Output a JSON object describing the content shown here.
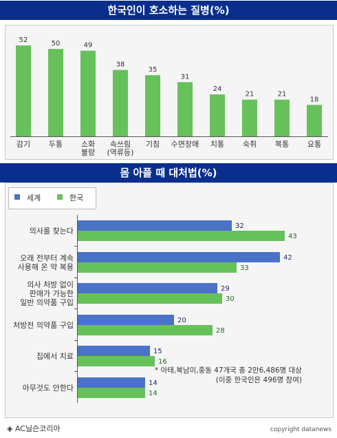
{
  "charts": {
    "top_title": "한국인이 호소하는 질병(%)",
    "bottom_title": "몸 아플 때 대처법(%)"
  },
  "legend": {
    "world": "세계",
    "korea": "한국"
  },
  "note": {
    "line1": "* 아태,북남미,중동 47개국 총 2만6,486명 대상",
    "line2": "(이중 한국인은 496명 참여)"
  },
  "footer": {
    "source": "◈ AC닐슨코리아",
    "copyright": "copyright datanews"
  },
  "colors": {
    "banner": "#0a2e8c",
    "green": "#66c15a",
    "blue": "#4a72c8"
  },
  "chart_data": [
    {
      "type": "bar",
      "title": "한국인이 호소하는 질병(%)",
      "categories": [
        "감기",
        "두통",
        "소화\n불량",
        "속쓰림\n(역류등)",
        "기침",
        "수면장애",
        "치통",
        "숙취",
        "복통",
        "요통"
      ],
      "values": [
        52,
        50,
        49,
        38,
        35,
        31,
        24,
        21,
        21,
        18
      ],
      "ylim": [
        0,
        60
      ],
      "grid": false
    },
    {
      "type": "bar",
      "orientation": "horizontal",
      "title": "몸 아플 때 대처법(%)",
      "categories": [
        "의사를 찾는다",
        "오래 전부터 계속\n사용해 온 약 복용",
        "의사 처방 없이\n판매가 가능한\n일반 의약품 구입",
        "처방전 의약품 구입",
        "집에서 치료",
        "아무것도 안한다"
      ],
      "series": [
        {
          "name": "세계",
          "values": [
            32,
            42,
            29,
            20,
            15,
            14
          ]
        },
        {
          "name": "한국",
          "values": [
            43,
            33,
            30,
            28,
            16,
            14
          ]
        }
      ],
      "xlim": [
        0,
        50
      ],
      "legend": "top-left",
      "grid": false
    }
  ]
}
